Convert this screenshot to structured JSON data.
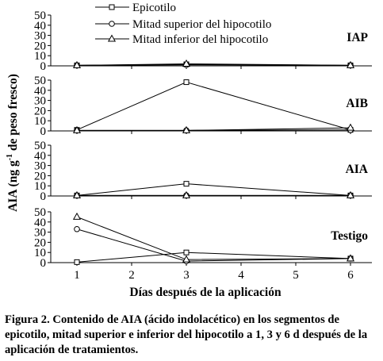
{
  "chart_data": {
    "type": "line",
    "xlabel": "Días después de la aplicación",
    "ylabel": "AIA (ng g-1 de peso fresco)",
    "ylabel_parts": [
      "AIA (ng g",
      "-1",
      " de peso fresco)"
    ],
    "x_ticks": [
      1,
      2,
      3,
      4,
      5,
      6
    ],
    "x_tick_labels": [
      "1",
      "2",
      "3",
      "4",
      "5",
      "6"
    ],
    "x_positions": [
      1,
      3,
      6
    ],
    "y_ticks": [
      0,
      10,
      20,
      30,
      40,
      50
    ],
    "y_tick_labels": [
      "0",
      "10",
      "20",
      "30",
      "40",
      "50"
    ],
    "ylim": [
      0,
      50
    ],
    "legend": [
      {
        "name": "Epicotilo",
        "marker": "square"
      },
      {
        "name": "Mitad superior del hipocotilo",
        "marker": "circle"
      },
      {
        "name": "Mitad inferior del hipocotilo",
        "marker": "triangle"
      }
    ],
    "legend_placement": "top-center",
    "panels": [
      {
        "label": "IAP",
        "series": [
          {
            "marker": "square",
            "values": [
              0.5,
              1.5,
              0.5
            ]
          },
          {
            "marker": "circle",
            "values": [
              0.5,
              1,
              0.5
            ]
          },
          {
            "marker": "triangle",
            "values": [
              0.5,
              2,
              0.5
            ]
          }
        ]
      },
      {
        "label": "AIB",
        "series": [
          {
            "marker": "square",
            "values": [
              1,
              48,
              1
            ]
          },
          {
            "marker": "circle",
            "values": [
              0.5,
              0.5,
              1
            ]
          },
          {
            "marker": "triangle",
            "values": [
              0.5,
              0.5,
              3
            ]
          }
        ]
      },
      {
        "label": "AIA",
        "series": [
          {
            "marker": "square",
            "values": [
              0.5,
              12,
              0.5
            ]
          },
          {
            "marker": "circle",
            "values": [
              0.5,
              0.5,
              0.5
            ]
          },
          {
            "marker": "triangle",
            "values": [
              0.5,
              0.5,
              0.5
            ]
          }
        ]
      },
      {
        "label": "Testigo",
        "series": [
          {
            "marker": "square",
            "values": [
              0.5,
              10,
              4
            ]
          },
          {
            "marker": "circle",
            "values": [
              33,
              1.5,
              4
            ]
          },
          {
            "marker": "triangle",
            "values": [
              45,
              3,
              4
            ]
          }
        ]
      }
    ]
  },
  "caption": "Figura 2. Contenido de AIA (ácido indolacético) en los segmentos de epicotilo, mitad superior e inferior del hipocotilo a 1, 3 y 6 d después de la aplicación de tratamientos."
}
